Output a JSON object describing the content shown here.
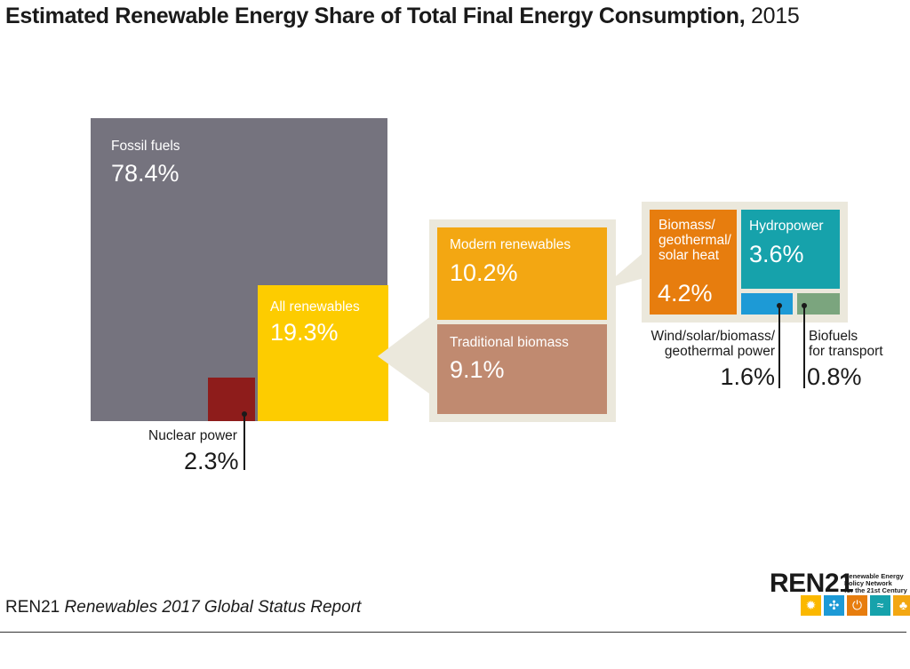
{
  "title": {
    "main": "Estimated Renewable Energy Share of Total Final Energy Consumption,",
    "year": "2015"
  },
  "chart_data": {
    "type": "treemap",
    "title": "Estimated Renewable Energy Share of Total Final Energy Consumption, 2015",
    "unit": "%",
    "items": [
      {
        "name": "Fossil fuels",
        "value": 78.4,
        "label": "78.4%",
        "color": "#75737e"
      },
      {
        "name": "Nuclear power",
        "value": 2.3,
        "label": "2.3%",
        "color": "#8e1c1b"
      },
      {
        "name": "All renewables",
        "value": 19.3,
        "label": "19.3%",
        "color": "#fdcc00",
        "children": [
          {
            "name": "Modern renewables",
            "value": 10.2,
            "label": "10.2%",
            "color": "#f3a712",
            "children": [
              {
                "name": "Biomass/ geothermal/ solar heat",
                "value": 4.2,
                "label": "4.2%",
                "color": "#e77d0e"
              },
              {
                "name": "Hydropower",
                "value": 3.6,
                "label": "3.6%",
                "color": "#16a2ab"
              },
              {
                "name": "Wind/solar/biomass/ geothermal power",
                "value": 1.6,
                "label": "1.6%",
                "color": "#1d9ad6"
              },
              {
                "name": "Biofuels for transport",
                "value": 0.8,
                "label": "0.8%",
                "color": "#7ba57e"
              }
            ]
          },
          {
            "name": "Traditional biomass",
            "value": 9.1,
            "label": "9.1%",
            "color": "#c08a70"
          }
        ]
      }
    ],
    "frame_color": "#ebe8dc"
  },
  "labels": {
    "fossil": {
      "name": "Fossil fuels",
      "pct": "78.4%"
    },
    "nuclear": {
      "name": "Nuclear power",
      "pct": "2.3%"
    },
    "renewables": {
      "name": "All renewables",
      "pct": "19.3%"
    },
    "modern": {
      "name": "Modern renewables",
      "pct": "10.2%"
    },
    "traditional": {
      "name": "Traditional biomass",
      "pct": "9.1%"
    },
    "heat": {
      "line1": "Biomass/",
      "line2": "geothermal/",
      "line3": "solar heat",
      "pct": "4.2%"
    },
    "hydro": {
      "name": "Hydropower",
      "pct": "3.6%"
    },
    "power": {
      "line1": "Wind/solar/biomass/",
      "line2": "geothermal power",
      "pct": "1.6%"
    },
    "biofuels": {
      "line1": "Biofuels",
      "line2": "for transport",
      "pct": "0.8%"
    }
  },
  "footer": {
    "org": "REN21",
    "report": "Renewables 2017 Global Status Report",
    "logo_word": "REN21",
    "logo_tagline": "Renewable Energy\nPolicy Network\nfor the 21st Century",
    "logo_icons": [
      {
        "name": "sun-icon",
        "glyph": "✹",
        "color": "#fbb800"
      },
      {
        "name": "wind-icon",
        "glyph": "✣",
        "color": "#1d9ad6"
      },
      {
        "name": "power-icon",
        "glyph": "⏻",
        "color": "#e77d0e"
      },
      {
        "name": "water-icon",
        "glyph": "≈",
        "color": "#16a2ab"
      },
      {
        "name": "leaf-icon",
        "glyph": "♣",
        "color": "#f3a712"
      }
    ]
  }
}
